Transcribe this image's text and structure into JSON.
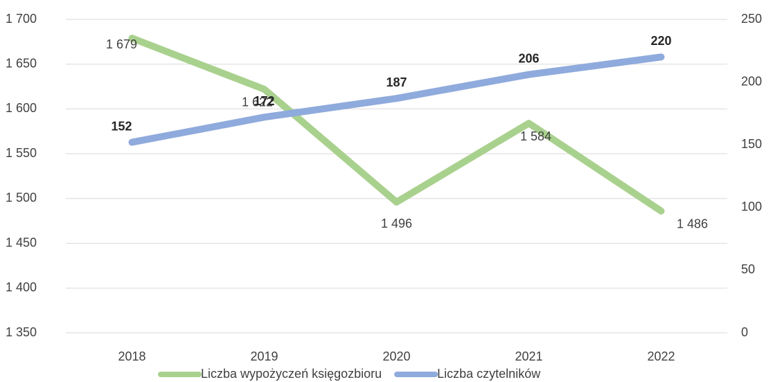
{
  "chart_data": {
    "type": "line",
    "categories": [
      "2018",
      "2019",
      "2020",
      "2021",
      "2022"
    ],
    "series": [
      {
        "name": "Liczba wypożyczeń księgozbioru",
        "color": "#a9d18e",
        "values": [
          1679,
          1622,
          1496,
          1584,
          1486
        ],
        "value_labels": [
          "1 679",
          "1 622",
          "1 496",
          "1 584",
          "1 486"
        ]
      },
      {
        "name": "Liczba czytelników",
        "color": "#8faadc",
        "axis": "y2",
        "values": [
          152,
          172,
          187,
          206,
          220
        ]
      }
    ],
    "ylim": [
      1350,
      1700
    ],
    "yticks": [
      {
        "value": 1350,
        "label": "1 350"
      },
      {
        "value": 1400,
        "label": "1 400"
      },
      {
        "value": 1450,
        "label": "1 450"
      },
      {
        "value": 1500,
        "label": "1 500"
      },
      {
        "value": 1550,
        "label": "1 550"
      },
      {
        "value": 1600,
        "label": "1 600"
      },
      {
        "value": 1650,
        "label": "1 650"
      },
      {
        "value": 1700,
        "label": "1 700"
      }
    ],
    "y2lim": [
      0,
      250
    ],
    "y2ticks": [
      0,
      50,
      100,
      150,
      200,
      250
    ],
    "grid": true,
    "legend": "bottom"
  }
}
